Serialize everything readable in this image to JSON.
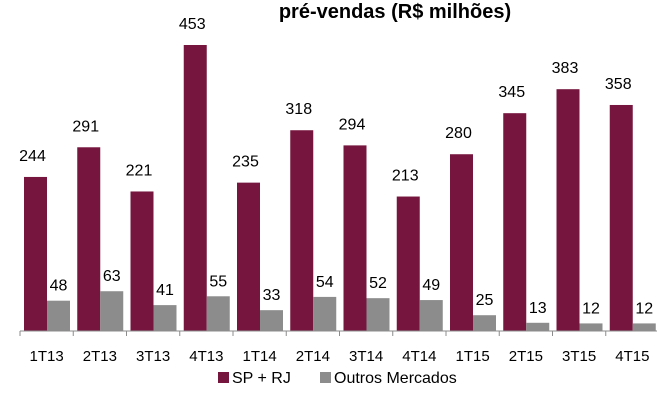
{
  "chart_data": {
    "type": "bar",
    "title": "pré-vendas (R$ milhões)",
    "xlabel": "",
    "ylabel": "",
    "ylim": [
      0,
      470
    ],
    "grid": false,
    "legend_position": "bottom",
    "categories": [
      "1T13",
      "2T13",
      "3T13",
      "4T13",
      "1T14",
      "2T14",
      "3T14",
      "4T14",
      "1T15",
      "2T15",
      "3T15",
      "4T15"
    ],
    "series": [
      {
        "name": "SP + RJ",
        "color": "#76163E",
        "values": [
          244,
          291,
          221,
          453,
          235,
          318,
          294,
          213,
          280,
          345,
          383,
          358
        ]
      },
      {
        "name": "Outros Mercados",
        "color": "#8C8C8C",
        "values": [
          48,
          63,
          41,
          55,
          33,
          54,
          52,
          49,
          25,
          13,
          12,
          12
        ]
      }
    ]
  }
}
